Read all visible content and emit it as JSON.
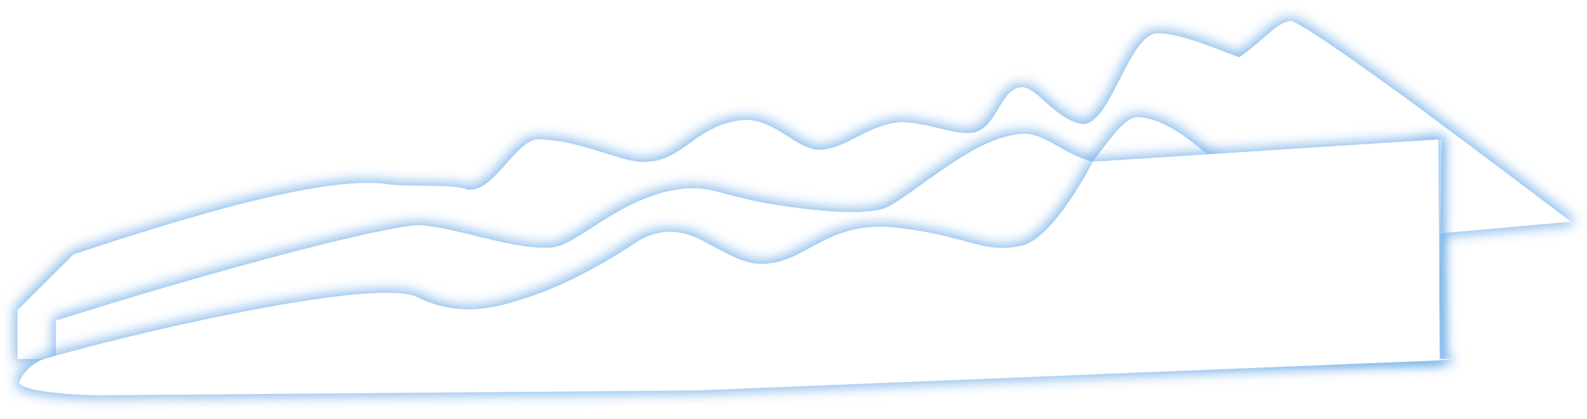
{
  "scene": {
    "subject": "",
    "colors": {
      "background": "#ffffff",
      "shape_fill": "#ffffff",
      "glow": "#7fb6ea",
      "glow_core": "#a9d0f5"
    },
    "layers": [
      {
        "name": "top-wave-layer"
      },
      {
        "name": "middle-wave-layer"
      },
      {
        "name": "bottom-wave-layer"
      }
    ]
  }
}
